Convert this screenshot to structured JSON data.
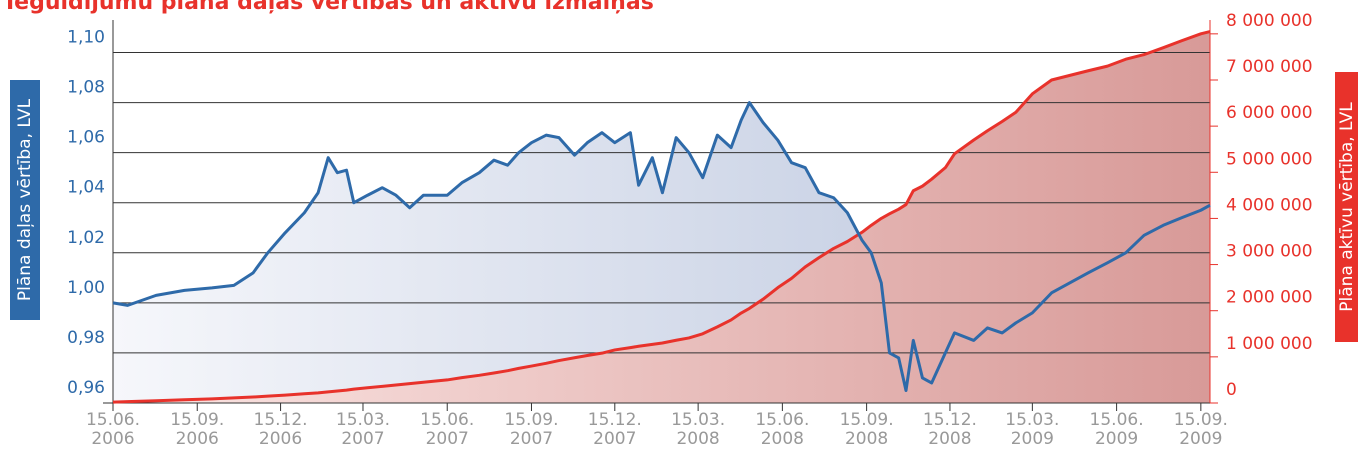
{
  "chart_data": {
    "type": "line",
    "title": "Ieguldījumu plāna daļas vērtības un aktīvu izmaiņas",
    "ylabel": "Plāna daļas vērtība, LVL",
    "y2label": "Plāna aktīvu vērtība, LVL",
    "x": [
      "2006-06-15",
      "2006-07-01",
      "2006-08-01",
      "2006-09-01",
      "2006-10-01",
      "2006-10-25",
      "2006-11-15",
      "2006-12-01",
      "2006-12-20",
      "2007-01-10",
      "2007-01-25",
      "2007-02-05",
      "2007-02-15",
      "2007-02-25",
      "2007-03-05",
      "2007-03-20",
      "2007-04-05",
      "2007-04-20",
      "2007-05-05",
      "2007-05-20",
      "2007-06-15",
      "2007-07-01",
      "2007-07-20",
      "2007-08-05",
      "2007-08-20",
      "2007-09-01",
      "2007-09-15",
      "2007-10-01",
      "2007-10-15",
      "2007-11-01",
      "2007-11-15",
      "2007-12-01",
      "2007-12-15",
      "2008-01-01",
      "2008-01-10",
      "2008-01-25",
      "2008-02-05",
      "2008-02-20",
      "2008-03-05",
      "2008-03-20",
      "2008-04-05",
      "2008-04-20",
      "2008-05-01",
      "2008-05-10",
      "2008-05-25",
      "2008-06-10",
      "2008-06-25",
      "2008-07-10",
      "2008-07-25",
      "2008-08-10",
      "2008-08-25",
      "2008-09-10",
      "2008-09-20",
      "2008-10-01",
      "2008-10-10",
      "2008-10-20",
      "2008-10-28",
      "2008-11-05",
      "2008-11-15",
      "2008-11-25",
      "2008-12-10",
      "2008-12-20",
      "2009-01-10",
      "2009-01-25",
      "2009-02-10",
      "2009-02-25",
      "2009-03-15",
      "2009-04-05",
      "2009-04-25",
      "2009-05-15",
      "2009-06-05",
      "2009-06-25",
      "2009-07-15",
      "2009-08-05",
      "2009-08-25",
      "2009-09-15",
      "2009-09-25"
    ],
    "series": [
      {
        "name": "Plāna daļas vērtība",
        "color": "#2e6aa9",
        "axis": "y",
        "values": [
          1.0,
          0.999,
          1.003,
          1.005,
          1.006,
          1.007,
          1.012,
          1.02,
          1.028,
          1.036,
          1.044,
          1.058,
          1.052,
          1.053,
          1.04,
          1.043,
          1.046,
          1.043,
          1.038,
          1.043,
          1.043,
          1.048,
          1.052,
          1.057,
          1.055,
          1.06,
          1.064,
          1.067,
          1.066,
          1.059,
          1.064,
          1.068,
          1.064,
          1.068,
          1.047,
          1.058,
          1.044,
          1.066,
          1.06,
          1.05,
          1.067,
          1.062,
          1.073,
          1.08,
          1.072,
          1.065,
          1.056,
          1.054,
          1.044,
          1.042,
          1.036,
          1.025,
          1.02,
          1.008,
          0.98,
          0.978,
          0.965,
          0.985,
          0.97,
          0.968,
          0.98,
          0.988,
          0.985,
          0.99,
          0.988,
          0.992,
          0.996,
          1.004,
          1.008,
          1.012,
          1.016,
          1.02,
          1.027,
          1.031,
          1.034,
          1.037,
          1.039
        ]
      },
      {
        "name": "Plāna aktīvu vērtība",
        "color": "#e8322b",
        "axis": "y2",
        "values": [
          20000,
          30000,
          50000,
          70000,
          90000,
          110000,
          130000,
          150000,
          170000,
          200000,
          220000,
          240000,
          260000,
          280000,
          300000,
          330000,
          360000,
          390000,
          420000,
          450000,
          500000,
          550000,
          600000,
          650000,
          700000,
          750000,
          800000,
          860000,
          920000,
          980000,
          1030000,
          1080000,
          1150000,
          1200000,
          1230000,
          1270000,
          1300000,
          1360000,
          1410000,
          1500000,
          1650000,
          1800000,
          1950000,
          2050000,
          2250000,
          2500000,
          2700000,
          2950000,
          3150000,
          3350000,
          3500000,
          3700000,
          3850000,
          4000000,
          4100000,
          4200000,
          4300000,
          4600000,
          4700000,
          4850000,
          5100000,
          5400000,
          5700000,
          5900000,
          6100000,
          6300000,
          6700000,
          7000000,
          7100000,
          7200000,
          7300000,
          7450000,
          7550000,
          7700000,
          7850000,
          8000000,
          8050000
        ]
      }
    ],
    "xlim": [
      "2006-06-15",
      "2009-09-25"
    ],
    "xticks": [
      {
        "value": "2006-06-15",
        "label": "15.06.\n2006"
      },
      {
        "value": "2006-09-15",
        "label": "15.09.\n2006"
      },
      {
        "value": "2006-12-15",
        "label": "15.12.\n2006"
      },
      {
        "value": "2007-03-15",
        "label": "15.03.\n2007"
      },
      {
        "value": "2007-06-15",
        "label": "15.06.\n2007"
      },
      {
        "value": "2007-09-15",
        "label": "15.09.\n2007"
      },
      {
        "value": "2007-12-15",
        "label": "15.12.\n2007"
      },
      {
        "value": "2008-03-15",
        "label": "15.03.\n2008"
      },
      {
        "value": "2008-06-15",
        "label": "15.06.\n2008"
      },
      {
        "value": "2008-09-15",
        "label": "15.09.\n2008"
      },
      {
        "value": "2008-12-15",
        "label": "15.12.\n2008"
      },
      {
        "value": "2009-03-15",
        "label": "15.03.\n2009"
      },
      {
        "value": "2009-06-15",
        "label": "15.06.\n2009"
      },
      {
        "value": "2009-09-15",
        "label": "15.09.\n2009"
      }
    ],
    "ylim": [
      0.96,
      1.113
    ],
    "yticks": [
      {
        "value": 0.96,
        "label": "0,96"
      },
      {
        "value": 0.98,
        "label": "0,98"
      },
      {
        "value": 1.0,
        "label": "1,00"
      },
      {
        "value": 1.02,
        "label": "1,02"
      },
      {
        "value": 1.04,
        "label": "1,04"
      },
      {
        "value": 1.06,
        "label": "1,06"
      },
      {
        "value": 1.08,
        "label": "1,08"
      },
      {
        "value": 1.1,
        "label": "1,10"
      }
    ],
    "y2lim": [
      0,
      8300000
    ],
    "y2ticks": [
      0,
      {
        "value": 1000000,
        "label": "1 000 000"
      },
      {
        "value": 2000000,
        "label": "2 000 000"
      },
      {
        "value": 3000000,
        "label": "3 000 000"
      },
      {
        "value": 4000000,
        "label": "4 000 000"
      },
      {
        "value": 5000000,
        "label": "5 000 000"
      },
      {
        "value": 6000000,
        "label": "6 000 000"
      },
      {
        "value": 7000000,
        "label": "7 000 000"
      },
      {
        "value": 8000000,
        "label": "8 000 000"
      }
    ],
    "grid": true
  }
}
